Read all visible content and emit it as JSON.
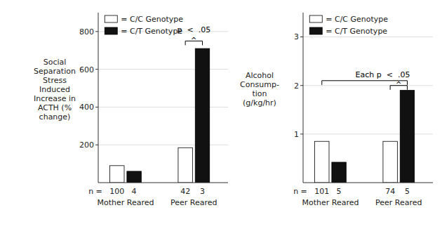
{
  "chart_data": [
    {
      "type": "bar",
      "ylabel": [
        "Social",
        "Separation",
        "Stress",
        "Induced",
        "Increase in",
        "ACTH (%",
        "change)"
      ],
      "categories": [
        "Mother Reared",
        "Peer Reared"
      ],
      "series": [
        {
          "name": "= C/C Genotype",
          "color": "#ffffff",
          "values": [
            90,
            185
          ],
          "n": [
            100,
            42
          ]
        },
        {
          "name": "= C/T Genotype",
          "color": "#111111",
          "values": [
            60,
            710
          ],
          "n": [
            4,
            3
          ]
        }
      ],
      "n_label": "n =",
      "ylim": [
        0,
        900
      ],
      "yticks": [
        200,
        400,
        600,
        800
      ],
      "grid": true,
      "legend": "upper left",
      "annotations": [
        {
          "text": "p  <  .05",
          "brackets": [
            {
              "from": {
                "category": "Peer Reared",
                "series": "= C/C Genotype"
              },
              "to": {
                "category": "Peer Reared",
                "series": "= C/T Genotype"
              },
              "y": 750,
              "caret": "^"
            }
          ]
        }
      ]
    },
    {
      "type": "bar",
      "ylabel": [
        "Alcohol",
        "Consump-",
        "tion",
        "(g/kg/hr)"
      ],
      "categories": [
        "Mother Reared",
        "Peer Reared"
      ],
      "series": [
        {
          "name": "= C/C Genotype",
          "color": "#ffffff",
          "values": [
            0.85,
            0.85
          ],
          "n": [
            101,
            74
          ]
        },
        {
          "name": "= C/T Genotype",
          "color": "#111111",
          "values": [
            0.42,
            1.9
          ],
          "n": [
            5,
            5
          ]
        }
      ],
      "n_label": "n =",
      "ylim": [
        0,
        3.5
      ],
      "yticks": [
        1,
        2,
        3
      ],
      "grid": true,
      "legend": "upper left",
      "annotations": [
        {
          "text": "Each p  <  .05",
          "brackets": [
            {
              "from": {
                "category": "Mother Reared",
                "series": "= C/C Genotype"
              },
              "to": {
                "category": "Peer Reared",
                "series": "= C/T Genotype"
              },
              "y": 2.1
            },
            {
              "from": {
                "category": "Peer Reared",
                "series": "= C/C Genotype"
              },
              "to": {
                "category": "Peer Reared",
                "series": "= C/T Genotype"
              },
              "y": 2.0,
              "caret": "^"
            }
          ]
        }
      ]
    }
  ]
}
